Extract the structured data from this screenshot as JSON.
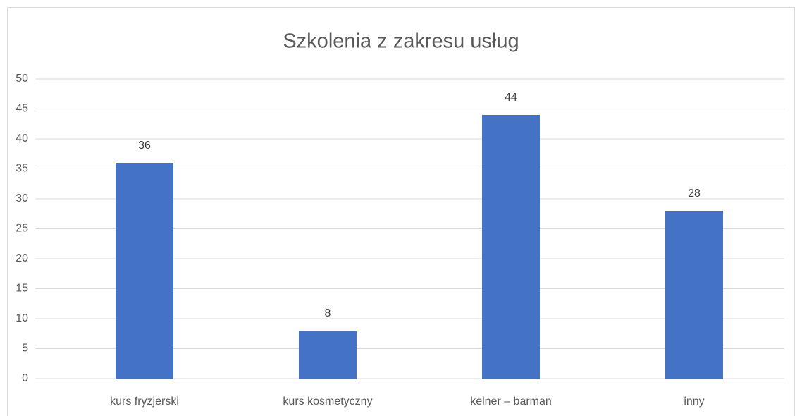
{
  "chart_data": {
    "type": "bar",
    "title": "Szkolenia z zakresu usług",
    "categories": [
      "kurs fryzjerski",
      "kurs kosmetyczny",
      "kelner – barman",
      "inny"
    ],
    "values": [
      36,
      8,
      44,
      28
    ],
    "color": "#4472c4",
    "ylim": [
      0,
      50
    ],
    "yticks": [
      0,
      5,
      10,
      15,
      20,
      25,
      30,
      35,
      40,
      45,
      50
    ],
    "grid": true
  }
}
